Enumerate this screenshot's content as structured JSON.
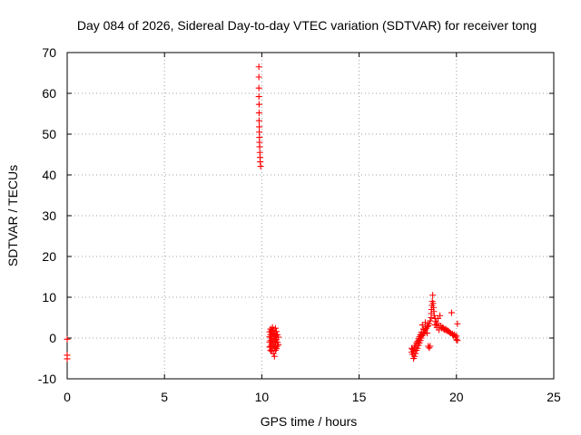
{
  "chart_data": {
    "type": "scatter",
    "title": "Day 084 of 2026, Sidereal Day-to-day VTEC variation (SDTVAR) for receiver tong",
    "xlabel": "GPS time / hours",
    "ylabel": "SDTVAR / TECUs",
    "xlim": [
      0,
      25
    ],
    "ylim": [
      -10,
      70
    ],
    "x_ticks": [
      "0",
      "5",
      "10",
      "15",
      "20",
      "25"
    ],
    "y_ticks": [
      "-10",
      "0",
      "10",
      "20",
      "30",
      "40",
      "50",
      "60",
      "70"
    ],
    "grid": true,
    "marker": "+",
    "color": "#ff0000",
    "series": [
      {
        "name": "SDTVAR",
        "points": [
          [
            0.0,
            -0.3
          ],
          [
            0.0,
            -4.2
          ],
          [
            0.0,
            -5.1
          ],
          [
            9.85,
            66.5
          ],
          [
            9.85,
            64.0
          ],
          [
            9.85,
            61.3
          ],
          [
            9.85,
            59.2
          ],
          [
            9.86,
            57.3
          ],
          [
            9.86,
            55.2
          ],
          [
            9.86,
            53.3
          ],
          [
            9.87,
            51.8
          ],
          [
            9.87,
            50.5
          ],
          [
            9.88,
            49.2
          ],
          [
            9.88,
            48.0
          ],
          [
            9.89,
            46.9
          ],
          [
            9.9,
            45.5
          ],
          [
            9.91,
            44.3
          ],
          [
            9.92,
            43.2
          ],
          [
            9.94,
            42.1
          ],
          [
            10.4,
            1.5
          ],
          [
            10.4,
            0.3
          ],
          [
            10.4,
            -1.0
          ],
          [
            10.4,
            -2.2
          ],
          [
            10.45,
            2.2
          ],
          [
            10.45,
            0.8
          ],
          [
            10.45,
            -0.6
          ],
          [
            10.45,
            -2.0
          ],
          [
            10.45,
            -3.0
          ],
          [
            10.5,
            1.8
          ],
          [
            10.5,
            0.0
          ],
          [
            10.5,
            -1.5
          ],
          [
            10.5,
            -3.2
          ],
          [
            10.55,
            2.6
          ],
          [
            10.55,
            1.0
          ],
          [
            10.55,
            -0.8
          ],
          [
            10.55,
            -2.5
          ],
          [
            10.6,
            2.0
          ],
          [
            10.6,
            0.4
          ],
          [
            10.6,
            -1.6
          ],
          [
            10.6,
            -3.8
          ],
          [
            10.65,
            1.2
          ],
          [
            10.65,
            -0.2
          ],
          [
            10.65,
            -2.2
          ],
          [
            10.65,
            -4.5
          ],
          [
            10.7,
            2.4
          ],
          [
            10.7,
            0.6
          ],
          [
            10.7,
            -1.2
          ],
          [
            10.7,
            -3.0
          ],
          [
            10.75,
            1.6
          ],
          [
            10.75,
            -0.4
          ],
          [
            10.75,
            -2.6
          ],
          [
            10.8,
            0.8
          ],
          [
            10.8,
            -1.0
          ],
          [
            10.8,
            -2.0
          ],
          [
            10.85,
            0.2
          ],
          [
            10.85,
            -1.6
          ],
          [
            17.7,
            -2.5
          ],
          [
            17.7,
            -3.5
          ],
          [
            17.75,
            -4.0
          ],
          [
            17.75,
            -2.8
          ],
          [
            17.8,
            -5.0
          ],
          [
            17.8,
            -3.2
          ],
          [
            17.85,
            -4.5
          ],
          [
            17.85,
            -2.2
          ],
          [
            17.9,
            -3.8
          ],
          [
            17.9,
            -1.8
          ],
          [
            17.95,
            -3.0
          ],
          [
            17.95,
            -1.2
          ],
          [
            18.0,
            -2.5
          ],
          [
            18.0,
            -0.8
          ],
          [
            18.05,
            -1.8
          ],
          [
            18.05,
            -0.2
          ],
          [
            18.1,
            -1.2
          ],
          [
            18.1,
            0.3
          ],
          [
            18.15,
            -0.6
          ],
          [
            18.15,
            0.8
          ],
          [
            18.2,
            0.0
          ],
          [
            18.2,
            1.4
          ],
          [
            18.25,
            0.6
          ],
          [
            18.25,
            3.2
          ],
          [
            18.3,
            1.0
          ],
          [
            18.3,
            2.2
          ],
          [
            18.35,
            1.5
          ],
          [
            18.4,
            2.0
          ],
          [
            18.4,
            3.8
          ],
          [
            18.45,
            2.4
          ],
          [
            18.5,
            2.8
          ],
          [
            18.5,
            1.2
          ],
          [
            18.55,
            3.0
          ],
          [
            18.55,
            -2.0
          ],
          [
            18.6,
            -2.4
          ],
          [
            18.6,
            3.5
          ],
          [
            18.65,
            4.2
          ],
          [
            18.65,
            -2.0
          ],
          [
            18.7,
            5.0
          ],
          [
            18.7,
            6.0
          ],
          [
            18.72,
            7.0
          ],
          [
            18.74,
            8.0
          ],
          [
            18.76,
            9.0
          ],
          [
            18.78,
            10.5
          ],
          [
            18.8,
            8.5
          ],
          [
            18.82,
            7.5
          ],
          [
            18.84,
            6.5
          ],
          [
            18.86,
            5.5
          ],
          [
            18.9,
            4.8
          ],
          [
            18.9,
            3.2
          ],
          [
            18.95,
            4.0
          ],
          [
            19.0,
            3.5
          ],
          [
            19.0,
            2.6
          ],
          [
            19.05,
            4.8
          ],
          [
            19.1,
            3.0
          ],
          [
            19.1,
            2.0
          ],
          [
            19.15,
            5.5
          ],
          [
            19.2,
            3.0
          ],
          [
            19.25,
            2.4
          ],
          [
            19.3,
            2.6
          ],
          [
            19.35,
            2.2
          ],
          [
            19.4,
            2.0
          ],
          [
            19.45,
            2.2
          ],
          [
            19.5,
            1.8
          ],
          [
            19.55,
            1.8
          ],
          [
            19.6,
            1.6
          ],
          [
            19.65,
            1.4
          ],
          [
            19.7,
            1.2
          ],
          [
            19.75,
            6.2
          ],
          [
            19.8,
            1.0
          ],
          [
            19.85,
            0.6
          ],
          [
            19.9,
            0.8
          ],
          [
            19.95,
            0.2
          ],
          [
            20.0,
            -0.4
          ],
          [
            20.0,
            0.5
          ],
          [
            20.05,
            3.5
          ],
          [
            20.05,
            -0.6
          ]
        ]
      }
    ]
  }
}
